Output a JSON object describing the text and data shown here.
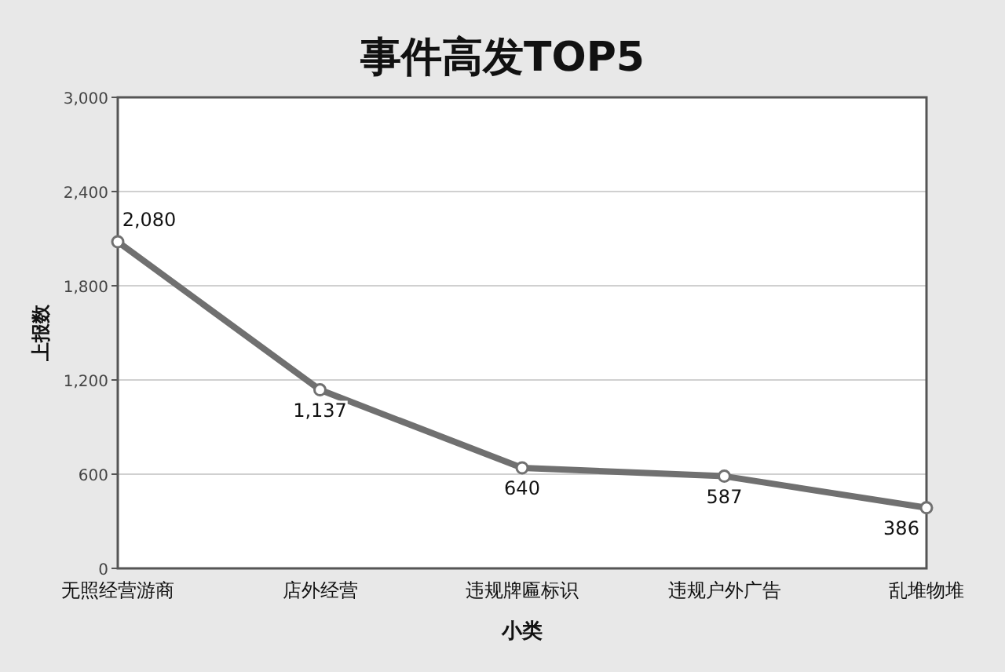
{
  "chart_data": {
    "type": "line",
    "title": "事件高发TOP5",
    "xlabel": "小类",
    "ylabel": "上报数",
    "categories": [
      "无照经营游商",
      "店外经营",
      "违规牌匾标识",
      "违规户外广告",
      "乱堆物堆"
    ],
    "series": [
      {
        "color": "#707070",
        "values": [
          2080,
          1137,
          640,
          587,
          386
        ],
        "value_labels": [
          "2,080",
          "1,137",
          "640",
          "587",
          "386"
        ]
      }
    ],
    "ylim": [
      0,
      3000
    ],
    "yticks": [
      {
        "value": 0,
        "label": "0"
      },
      {
        "value": 600,
        "label": "600"
      },
      {
        "value": 1200,
        "label": "1,200"
      },
      {
        "value": 1800,
        "label": "1,800"
      },
      {
        "value": 2400,
        "label": "2,400"
      },
      {
        "value": 3000,
        "label": "3,000"
      }
    ],
    "grid": "y",
    "marker": "circle",
    "line_style": "solid"
  }
}
